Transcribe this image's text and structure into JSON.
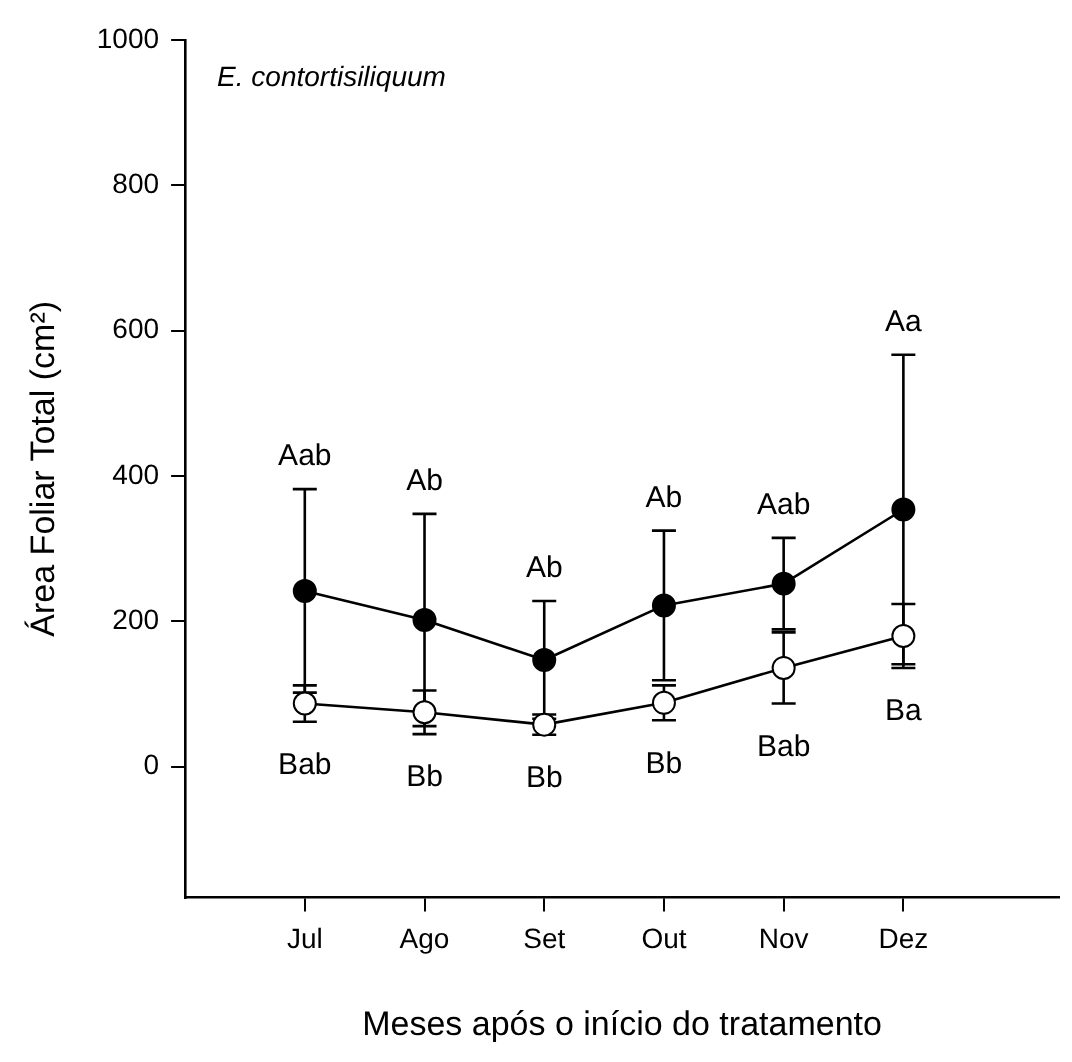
{
  "chart_data": {
    "type": "line",
    "xlabel": "Meses após o início do tratamento",
    "ylabel": "Área Foliar Total (cm²)",
    "categories": [
      "Jul",
      "Ago",
      "Set",
      "Out",
      "Nov",
      "Dez"
    ],
    "series": [
      {
        "color": "#000000",
        "values": [
          242,
          202,
          147,
          222,
          252,
          354
        ],
        "errors": [
          140,
          146,
          81,
          103,
          63,
          213
        ]
      },
      {
        "color": "#ffffff",
        "values": [
          87,
          75,
          58,
          88,
          136,
          180
        ],
        "errors": [
          25,
          30,
          14,
          24,
          49,
          44
        ]
      }
    ],
    "ylim": [
      -180,
      1000
    ],
    "yticks": [
      0,
      200,
      400,
      600,
      800,
      1000
    ],
    "grid": false,
    "legend": false,
    "marker": "circle",
    "line_style": "solid",
    "annotations": [
      "E. contortisiliquum",
      {
        "text": "Aab",
        "x": "Jul",
        "y": 382
      },
      {
        "text": "Ab",
        "x": "Ago",
        "y": 348
      },
      {
        "text": "Ab",
        "x": "Set",
        "y": 228
      },
      {
        "text": "Ab",
        "x": "Out",
        "y": 325
      },
      {
        "text": "Aab",
        "x": "Nov",
        "y": 315
      },
      {
        "text": "Aa",
        "x": "Dez",
        "y": 567
      },
      {
        "text": "Bab",
        "x": "Jul",
        "y": 62
      },
      {
        "text": "Bb",
        "x": "Ago",
        "y": 45
      },
      {
        "text": "Bb",
        "x": "Set",
        "y": 44
      },
      {
        "text": "Bb",
        "x": "Out",
        "y": 64
      },
      {
        "text": "Bab",
        "x": "Nov",
        "y": 87
      },
      {
        "text": "Ba",
        "x": "Dez",
        "y": 136
      }
    ]
  }
}
